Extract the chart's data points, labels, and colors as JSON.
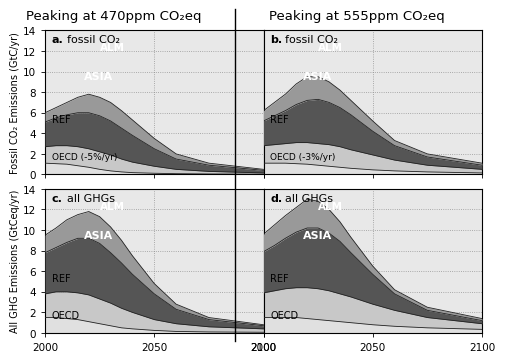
{
  "title_left": "Peaking at 470ppm CO₂eq",
  "title_right": "Peaking at 555ppm CO₂eq",
  "years": [
    2000,
    2005,
    2010,
    2015,
    2020,
    2025,
    2030,
    2035,
    2040,
    2050,
    2060,
    2075,
    2100
  ],
  "panel_a": {
    "label": "a.",
    "subtitle": "fossil CO₂",
    "ylim": [
      0,
      14
    ],
    "yticks": [
      0,
      2,
      4,
      6,
      8,
      10,
      12,
      14
    ],
    "ylabel": "Fossil CO₂ Emissions (GtC/yr)",
    "OECD": [
      1.1,
      1.05,
      1.0,
      0.85,
      0.7,
      0.5,
      0.35,
      0.25,
      0.18,
      0.12,
      0.08,
      0.05,
      0.03
    ],
    "REF": [
      2.7,
      2.8,
      2.8,
      2.7,
      2.5,
      2.2,
      1.9,
      1.5,
      1.2,
      0.8,
      0.5,
      0.3,
      0.15
    ],
    "ASIA": [
      5.1,
      5.5,
      5.8,
      6.0,
      6.0,
      5.7,
      5.2,
      4.5,
      3.8,
      2.5,
      1.5,
      0.9,
      0.4
    ],
    "ALM": [
      6.0,
      6.5,
      7.0,
      7.5,
      7.8,
      7.5,
      7.0,
      6.2,
      5.3,
      3.5,
      2.0,
      1.1,
      0.5
    ],
    "note": "(-5%/yr)"
  },
  "panel_b": {
    "label": "b.",
    "subtitle": "fossil CO₂",
    "ylim": [
      0,
      14
    ],
    "yticks": [
      0,
      2,
      4,
      6,
      8,
      10,
      12,
      14
    ],
    "OECD": [
      1.1,
      1.1,
      1.1,
      1.05,
      1.0,
      0.9,
      0.8,
      0.7,
      0.6,
      0.45,
      0.35,
      0.25,
      0.15
    ],
    "REF": [
      2.8,
      2.9,
      3.0,
      3.1,
      3.1,
      3.0,
      2.9,
      2.7,
      2.4,
      1.9,
      1.4,
      0.9,
      0.5
    ],
    "ASIA": [
      5.2,
      5.7,
      6.2,
      6.8,
      7.2,
      7.3,
      7.0,
      6.5,
      5.8,
      4.2,
      2.8,
      1.7,
      0.9
    ],
    "ALM": [
      6.2,
      7.0,
      7.8,
      8.8,
      9.5,
      9.5,
      9.0,
      8.2,
      7.2,
      5.2,
      3.3,
      2.0,
      1.1
    ],
    "note": "(-3%/yr)"
  },
  "panel_c": {
    "label": "c.",
    "subtitle": "all GHGs",
    "ylim": [
      0,
      14
    ],
    "yticks": [
      0,
      2,
      4,
      6,
      8,
      10,
      12,
      14
    ],
    "ylabel": "All GHG Emissions (GtCeq/yr)",
    "OECD": [
      1.5,
      1.5,
      1.4,
      1.3,
      1.1,
      0.9,
      0.7,
      0.5,
      0.4,
      0.25,
      0.15,
      0.1,
      0.07
    ],
    "REF": [
      3.8,
      4.0,
      4.0,
      3.9,
      3.7,
      3.3,
      2.9,
      2.4,
      2.0,
      1.3,
      0.9,
      0.6,
      0.4
    ],
    "ASIA": [
      7.8,
      8.3,
      8.8,
      9.2,
      9.2,
      8.7,
      7.8,
      6.8,
      5.7,
      3.8,
      2.3,
      1.3,
      0.7
    ],
    "ALM": [
      9.5,
      10.2,
      11.0,
      11.5,
      11.8,
      11.3,
      10.3,
      9.0,
      7.5,
      4.8,
      2.8,
      1.5,
      0.8
    ]
  },
  "panel_d": {
    "label": "d.",
    "subtitle": "all GHGs",
    "ylim": [
      0,
      14
    ],
    "yticks": [
      0,
      2,
      4,
      6,
      8,
      10,
      12,
      14
    ],
    "OECD": [
      1.5,
      1.5,
      1.5,
      1.5,
      1.4,
      1.3,
      1.2,
      1.1,
      1.0,
      0.8,
      0.65,
      0.5,
      0.35
    ],
    "REF": [
      3.9,
      4.1,
      4.3,
      4.4,
      4.4,
      4.3,
      4.1,
      3.8,
      3.5,
      2.8,
      2.2,
      1.5,
      0.9
    ],
    "ASIA": [
      7.9,
      8.5,
      9.2,
      9.8,
      10.2,
      10.2,
      9.7,
      8.9,
      7.8,
      5.7,
      3.8,
      2.2,
      1.2
    ],
    "ALM": [
      9.6,
      10.5,
      11.4,
      12.2,
      13.0,
      12.8,
      12.0,
      10.8,
      9.3,
      6.5,
      4.2,
      2.5,
      1.4
    ]
  },
  "colors": {
    "OECD": "#e0e0e0",
    "REF": "#c8c8c8",
    "ASIA": "#555555",
    "ALM": "#999999"
  },
  "edge_color": "#222222",
  "bg_color": "#e8e8e8",
  "label_fontsize": 8,
  "title_fontsize": 9.5,
  "tick_fontsize": 7.5
}
